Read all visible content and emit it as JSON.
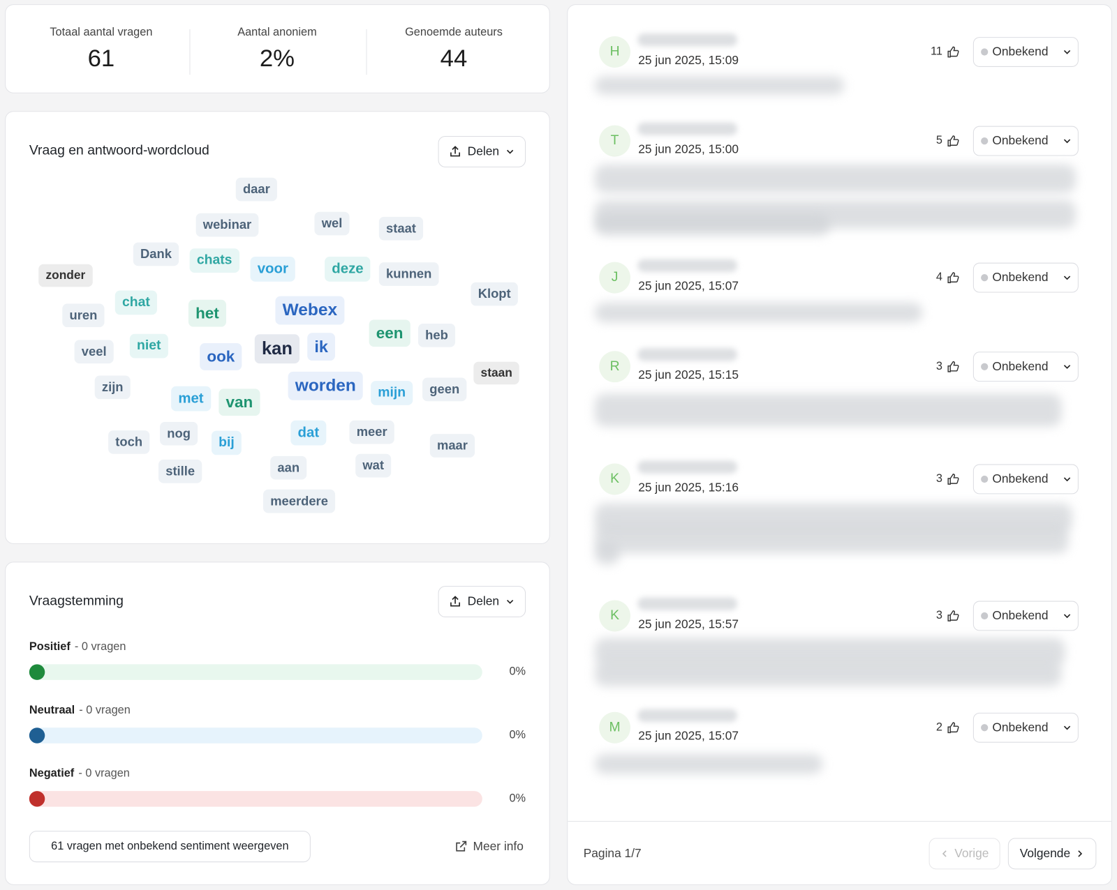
{
  "stats": [
    {
      "label": "Totaal aantal vragen",
      "value": "61"
    },
    {
      "label": "Aantal anoniem",
      "value": "2%"
    },
    {
      "label": "Genoemde auteurs",
      "value": "44"
    }
  ],
  "wordcloud": {
    "title": "Vraag en antwoord-wordcloud",
    "share": "Delen",
    "words": [
      "daar",
      "webinar",
      "wel",
      "staat",
      "Dank",
      "chats",
      "voor",
      "deze",
      "kunnen",
      "zonder",
      "Klopt",
      "chat",
      "uren",
      "het",
      "Webex",
      "een",
      "heb",
      "niet",
      "veel",
      "ook",
      "kan",
      "ik",
      "staan",
      "zijn",
      "worden",
      "mijn",
      "geen",
      "met",
      "van",
      "toch",
      "nog",
      "bij",
      "dat",
      "meer",
      "maar",
      "stille",
      "aan",
      "wat",
      "meerdere"
    ]
  },
  "sentiment": {
    "title": "Vraagstemming",
    "share": "Delen",
    "rows": [
      {
        "label": "Positief",
        "count": "- 0 vragen",
        "percent": "0%"
      },
      {
        "label": "Neutraal",
        "count": "- 0 vragen",
        "percent": "0%"
      },
      {
        "label": "Negatief",
        "count": "- 0 vragen",
        "percent": "0%"
      }
    ],
    "button": "61 vragen met onbekend sentiment weergeven",
    "more": "Meer info"
  },
  "questions": [
    {
      "initial": "H",
      "date": "25 jun 2025, 15:09",
      "votes": "11",
      "status": "Onbekend"
    },
    {
      "initial": "T",
      "date": "25 jun 2025, 15:00",
      "votes": "5",
      "status": "Onbekend"
    },
    {
      "initial": "J",
      "date": "25 jun 2025, 15:07",
      "votes": "4",
      "status": "Onbekend"
    },
    {
      "initial": "R",
      "date": "25 jun 2025, 15:15",
      "votes": "3",
      "status": "Onbekend"
    },
    {
      "initial": "K",
      "date": "25 jun 2025, 15:16",
      "votes": "3",
      "status": "Onbekend"
    },
    {
      "initial": "K",
      "date": "25 jun 2025, 15:57",
      "votes": "3",
      "status": "Onbekend"
    },
    {
      "initial": "M",
      "date": "25 jun 2025, 15:07",
      "votes": "2",
      "status": "Onbekend"
    }
  ],
  "pagination": {
    "page": "Pagina 1/7",
    "prev": "Vorige",
    "next": "Volgende"
  }
}
